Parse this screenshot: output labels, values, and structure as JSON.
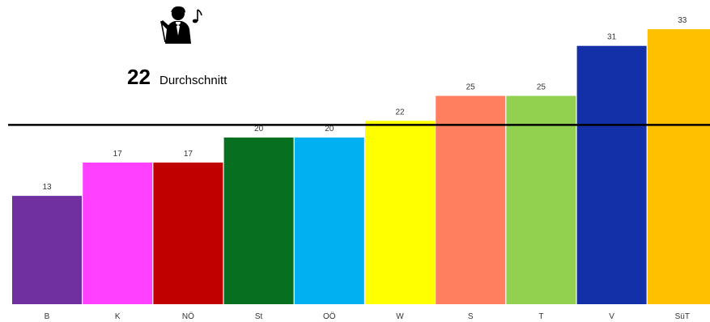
{
  "chart_data": {
    "type": "bar",
    "categories": [
      "B",
      "K",
      "NÖ",
      "St",
      "OÖ",
      "W",
      "S",
      "T",
      "V",
      "SüT"
    ],
    "values": [
      13,
      17,
      17,
      20,
      20,
      22,
      25,
      25,
      31,
      33
    ],
    "colors": [
      "#7030a0",
      "#ff40ff",
      "#c00000",
      "#077020",
      "#00b0f0",
      "#ffff00",
      "#ff7f5f",
      "#92d050",
      "#1430a8",
      "#ffc000"
    ],
    "ylim": [
      0,
      35
    ],
    "grid": false,
    "average": {
      "value": "22",
      "label": "Durchschnitt",
      "line_value": 22,
      "line_color": "#000000"
    },
    "icon": "conductor-with-baton-and-music-note-icon"
  }
}
